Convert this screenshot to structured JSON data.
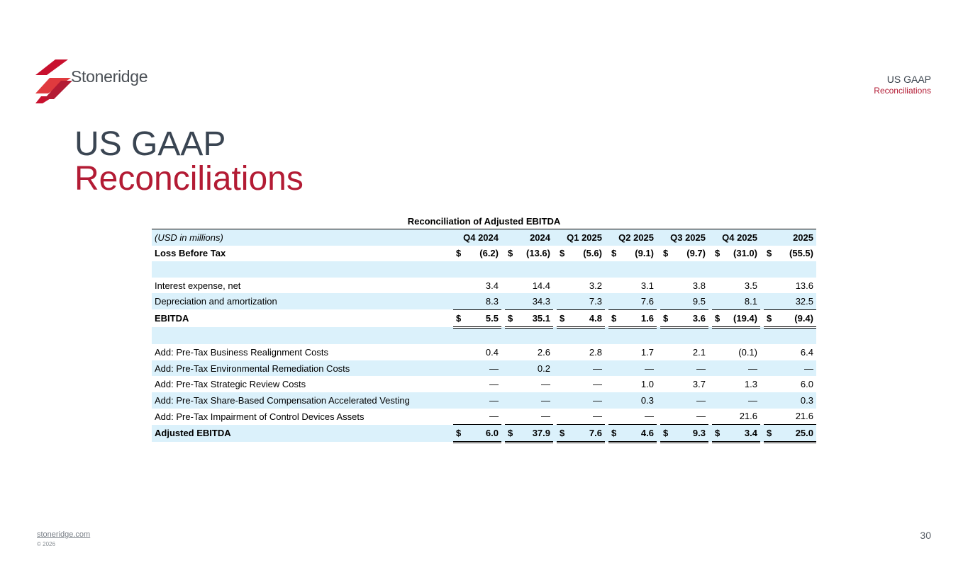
{
  "header": {
    "logo_text": "Stoneridge",
    "section_line1": "US GAAP",
    "section_line2": "Reconciliations"
  },
  "title": {
    "line1": "US GAAP",
    "line2": "Reconciliations"
  },
  "table": {
    "title": "Reconciliation of Adjusted EBITDA",
    "unit_label": "(USD in millions)",
    "columns": [
      "Q4 2024",
      "2024",
      "Q1 2025",
      "Q2 2025",
      "Q3 2025",
      "Q4 2025",
      "2025"
    ],
    "rows": [
      {
        "label": "Loss Before Tax",
        "values": [
          "(6.2)",
          "(13.6)",
          "(5.6)",
          "(9.1)",
          "(9.7)",
          "(31.0)",
          "(55.5)"
        ],
        "dollar": "$"
      },
      {
        "label": "",
        "values": [
          "",
          "",
          "",
          "",
          "",
          "",
          ""
        ]
      },
      {
        "label": "Interest expense, net",
        "values": [
          "3.4",
          "14.4",
          "3.2",
          "3.1",
          "3.8",
          "3.5",
          "13.6"
        ]
      },
      {
        "label": "Depreciation and amortization",
        "values": [
          "8.3",
          "34.3",
          "7.3",
          "7.6",
          "9.5",
          "8.1",
          "32.5"
        ]
      },
      {
        "label": "EBITDA",
        "values": [
          "5.5",
          "35.1",
          "4.8",
          "1.6",
          "3.6",
          "(19.4)",
          "(9.4)"
        ],
        "dollar": "$"
      },
      {
        "label": "",
        "values": [
          "",
          "",
          "",
          "",
          "",
          "",
          ""
        ]
      },
      {
        "label": "Add: Pre-Tax Business Realignment Costs",
        "values": [
          "0.4",
          "2.6",
          "2.8",
          "1.7",
          "2.1",
          "(0.1)",
          "6.4"
        ]
      },
      {
        "label": "Add: Pre-Tax Environmental Remediation Costs",
        "values": [
          "—",
          "0.2",
          "—",
          "—",
          "—",
          "—",
          "—"
        ]
      },
      {
        "label": "Add: Pre-Tax Strategic Review Costs",
        "values": [
          "—",
          "—",
          "—",
          "1.0",
          "3.7",
          "1.3",
          "6.0"
        ]
      },
      {
        "label": "Add: Pre-Tax Share-Based Compensation Accelerated Vesting",
        "values": [
          "—",
          "—",
          "—",
          "0.3",
          "—",
          "—",
          "0.3"
        ]
      },
      {
        "label": "Add: Pre-Tax Impairment of Control Devices Assets",
        "values": [
          "—",
          "—",
          "—",
          "—",
          "—",
          "21.6",
          "21.6"
        ]
      },
      {
        "label": "Adjusted EBITDA",
        "values": [
          "6.0",
          "37.9",
          "7.6",
          "4.6",
          "9.3",
          "3.4",
          "25.0"
        ],
        "dollar": "$"
      }
    ]
  },
  "footer": {
    "link": "stoneridge.com",
    "copyright": "© 2026",
    "page_number": "30"
  },
  "colors": {
    "accent_red": "#b31b34",
    "title_gray": "#3a4552",
    "row_shade": "#dbf1fb"
  }
}
